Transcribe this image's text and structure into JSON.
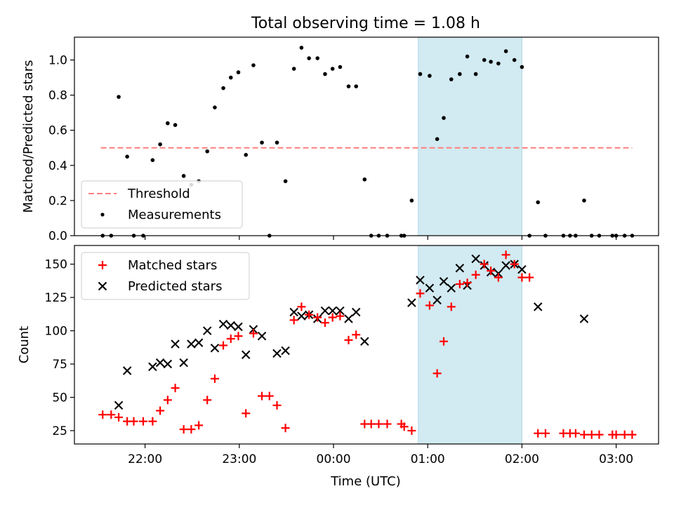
{
  "figure": {
    "title": "Total observing time = 1.08 h",
    "xlabel": "Time (UTC)",
    "highlight_band": {
      "x": [
        24.9,
        26.0
      ],
      "color": "#add8e6"
    }
  },
  "chart_data": [
    {
      "type": "scatter",
      "ylabel": "Matched/Predicted stars",
      "xlim": [
        21.25,
        27.45
      ],
      "ylim": [
        0,
        1.13
      ],
      "yticks": [
        0.0,
        0.2,
        0.4,
        0.6,
        0.8,
        1.0
      ],
      "ytick_labels": [
        "0.0",
        "0.2",
        "0.4",
        "0.6",
        "0.8",
        "1.0"
      ],
      "legend_location": "lower-left",
      "threshold": {
        "name": "Threshold",
        "y": 0.5,
        "x": [
          21.53,
          27.17
        ],
        "color": "#ff7f7f",
        "style": "dashed"
      },
      "series": [
        {
          "name": "Measurements",
          "color": "#000000",
          "marker": "dot",
          "x": [
            21.55,
            21.64,
            21.72,
            21.81,
            21.88,
            21.98,
            22.08,
            22.16,
            22.24,
            22.32,
            22.41,
            22.49,
            22.57,
            22.66,
            22.74,
            22.83,
            22.91,
            22.99,
            23.07,
            23.15,
            23.24,
            23.32,
            23.4,
            23.49,
            23.58,
            23.66,
            23.74,
            23.83,
            23.91,
            23.99,
            24.07,
            24.16,
            24.24,
            24.33,
            24.4,
            24.48,
            24.57,
            24.72,
            24.75,
            24.83,
            24.92,
            25.02,
            25.1,
            25.17,
            25.25,
            25.34,
            25.42,
            25.51,
            25.6,
            25.67,
            25.75,
            25.83,
            25.92,
            26.0,
            26.08,
            26.17,
            26.25,
            26.44,
            26.51,
            26.57,
            26.66,
            26.74,
            26.82,
            26.96,
            27.0,
            27.09,
            27.17
          ],
          "y": [
            0.0,
            0.0,
            0.79,
            0.45,
            0.0,
            0.0,
            0.43,
            0.52,
            0.64,
            0.63,
            0.34,
            0.29,
            0.31,
            0.48,
            0.73,
            0.84,
            0.9,
            0.93,
            0.46,
            0.97,
            0.53,
            0.0,
            0.53,
            0.31,
            0.95,
            1.07,
            1.01,
            1.01,
            0.92,
            0.95,
            0.96,
            0.85,
            0.85,
            0.32,
            0.0,
            0.0,
            0.0,
            0.0,
            0.0,
            0.2,
            0.92,
            0.91,
            0.55,
            0.67,
            0.89,
            0.92,
            1.02,
            0.92,
            1.0,
            0.99,
            0.98,
            1.05,
            1.0,
            0.96,
            0.0,
            0.19,
            0.0,
            0.0,
            0.0,
            0.0,
            0.2,
            0.0,
            0.0,
            0.0,
            0.0,
            0.0,
            0.0
          ]
        }
      ]
    },
    {
      "type": "scatter",
      "ylabel": "Count",
      "xlim": [
        21.25,
        27.45
      ],
      "ylim": [
        15,
        164
      ],
      "yticks": [
        25,
        50,
        75,
        100,
        125,
        150
      ],
      "ytick_labels": [
        "25",
        "50",
        "75",
        "100",
        "125",
        "150"
      ],
      "xticks": [
        22,
        23,
        24,
        25,
        26,
        27
      ],
      "xtick_labels": [
        "22:00",
        "23:00",
        "00:00",
        "01:00",
        "02:00",
        "03:00"
      ],
      "legend_location": "upper-left",
      "series": [
        {
          "name": "Matched stars",
          "color": "#ff0000",
          "marker": "plus",
          "x": [
            21.55,
            21.64,
            21.72,
            21.81,
            21.88,
            21.98,
            22.08,
            22.16,
            22.24,
            22.32,
            22.41,
            22.49,
            22.57,
            22.66,
            22.74,
            22.83,
            22.91,
            22.99,
            23.07,
            23.15,
            23.24,
            23.32,
            23.4,
            23.49,
            23.58,
            23.66,
            23.74,
            23.83,
            23.91,
            23.99,
            24.07,
            24.16,
            24.24,
            24.33,
            24.4,
            24.48,
            24.57,
            24.72,
            24.75,
            24.83,
            24.92,
            25.02,
            25.1,
            25.17,
            25.25,
            25.34,
            25.42,
            25.51,
            25.6,
            25.67,
            25.75,
            25.83,
            25.92,
            26.0,
            26.08,
            26.17,
            26.25,
            26.44,
            26.51,
            26.57,
            26.66,
            26.74,
            26.82,
            26.96,
            27.0,
            27.09,
            27.17
          ],
          "y": [
            37,
            37,
            35,
            32,
            32,
            32,
            32,
            40,
            48,
            57,
            26,
            26,
            29,
            48,
            64,
            89,
            94,
            96,
            38,
            98,
            51,
            51,
            44,
            27,
            108,
            118,
            112,
            110,
            106,
            110,
            111,
            93,
            97,
            30,
            30,
            30,
            30,
            30,
            28,
            25,
            128,
            119,
            68,
            92,
            118,
            135,
            136,
            142,
            150,
            145,
            140,
            157,
            150,
            140,
            140,
            23,
            23,
            23,
            23,
            23,
            22,
            22,
            22,
            22,
            22,
            22,
            22
          ]
        },
        {
          "name": "Predicted stars",
          "color": "#000000",
          "marker": "x",
          "x": [
            21.72,
            21.81,
            22.08,
            22.16,
            22.24,
            22.32,
            22.41,
            22.49,
            22.57,
            22.66,
            22.74,
            22.83,
            22.91,
            22.99,
            23.07,
            23.15,
            23.24,
            23.4,
            23.49,
            23.58,
            23.66,
            23.74,
            23.83,
            23.91,
            23.99,
            24.07,
            24.16,
            24.24,
            24.33,
            24.83,
            24.92,
            25.02,
            25.1,
            25.17,
            25.25,
            25.34,
            25.42,
            25.51,
            25.6,
            25.67,
            25.75,
            25.83,
            25.92,
            26.0,
            26.17,
            26.66
          ],
          "y": [
            44,
            70,
            73,
            76,
            75,
            90,
            76,
            90,
            91,
            100,
            87,
            105,
            104,
            103,
            82,
            101,
            96,
            83,
            85,
            114,
            111,
            112,
            109,
            115,
            115,
            115,
            109,
            114,
            92,
            121,
            138,
            132,
            123,
            137,
            132,
            147,
            134,
            154,
            149,
            144,
            143,
            149,
            150,
            146,
            118,
            109
          ]
        }
      ]
    }
  ]
}
